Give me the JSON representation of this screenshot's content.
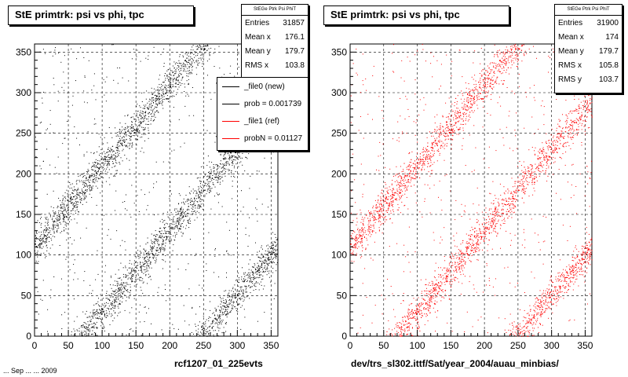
{
  "chart_data": [
    {
      "type": "scatter",
      "title": "StE primtrk: psi vs phi, tpc",
      "xlim": [
        0,
        360
      ],
      "ylim": [
        0,
        360
      ],
      "x_ticks": [
        "0",
        "50",
        "100",
        "150",
        "200",
        "250",
        "300",
        "350"
      ],
      "y_ticks": [
        "0",
        "50",
        "100",
        "150",
        "200",
        "250",
        "300",
        "350"
      ],
      "grid": true,
      "marker_color": "#000000",
      "series": [
        {
          "color": "#000000",
          "band_offsets": [
            -250,
            -70,
            110
          ],
          "slope": 1.0,
          "points_approx": [
            [
              0,
              110
            ],
            [
              100,
              210
            ],
            [
              250,
              360
            ],
            [
              0,
              290
            ],
            [
              70,
              360
            ],
            [
              70,
              0
            ],
            [
              150,
              80
            ],
            [
              250,
              0
            ],
            [
              360,
              110
            ]
          ]
        }
      ],
      "stats": {
        "header": "StEGe Ptrk Psi PhiT",
        "entries_label": "Entries",
        "entries": "31857",
        "mean_x_label": "Mean x",
        "mean_x": "176.1",
        "mean_y_label": "Mean y",
        "mean_y": "179.7",
        "rms_x_label": "RMS x",
        "rms_x": "103.8"
      },
      "legend": [
        {
          "label": "_file0 (new)",
          "color": "#000000"
        },
        {
          "label": "prob = 0.001739",
          "color": "#000000"
        },
        {
          "label": "_file1 (ref)",
          "color": "#ff0000"
        },
        {
          "label": "probN = 0.01127",
          "color": "#ff0000"
        }
      ],
      "footer": "rcf1207_01_225evts"
    },
    {
      "type": "scatter",
      "title": "StE primtrk: psi vs phi, tpc",
      "xlim": [
        0,
        360
      ],
      "ylim": [
        0,
        360
      ],
      "x_ticks": [
        "0",
        "50",
        "100",
        "150",
        "200",
        "250",
        "300",
        "350"
      ],
      "y_ticks": [
        "0",
        "50",
        "100",
        "150",
        "200",
        "250",
        "300",
        "350"
      ],
      "grid": true,
      "marker_color": "#ff0000",
      "series": [
        {
          "color": "#ff0000",
          "band_offsets": [
            -250,
            -70,
            110
          ],
          "slope": 1.0,
          "points_approx": [
            [
              0,
              110
            ],
            [
              100,
              210
            ],
            [
              250,
              360
            ],
            [
              0,
              290
            ],
            [
              70,
              360
            ],
            [
              70,
              0
            ],
            [
              150,
              80
            ],
            [
              250,
              0
            ],
            [
              360,
              110
            ]
          ]
        }
      ],
      "stats": {
        "header": "StEGe Ptrk Psi PhiT",
        "entries_label": "Entries",
        "entries": "31900",
        "mean_x_label": "Mean x",
        "mean_x": "174",
        "mean_y_label": "Mean y",
        "mean_y": "179.7",
        "rms_x_label": "RMS x",
        "rms_x": "105.8",
        "rms_y_label": "RMS y",
        "rms_y": "103.7"
      },
      "footer": "dev/trs_sl302.ittf/Sat/year_2004/auau_minbias/"
    }
  ],
  "cut_text": "... Sep ... ... 2009"
}
